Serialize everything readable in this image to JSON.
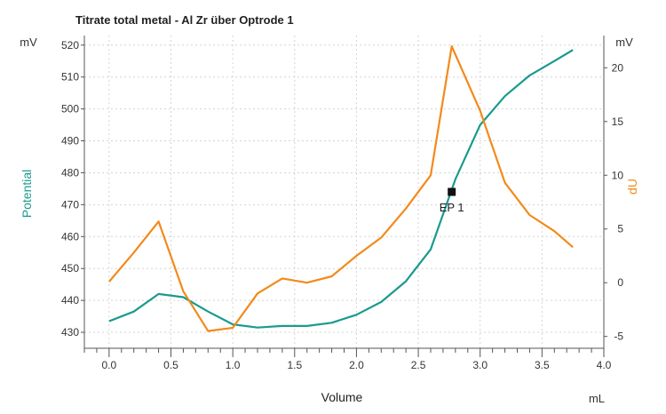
{
  "chart_data": {
    "type": "line",
    "title": "Titrate total metal - Al Zr über Optrode  1",
    "xlabel": "Volume",
    "x_unit": "mL",
    "xlim": [
      -0.2,
      4.0
    ],
    "x_ticks": [
      "0.0",
      "0.5",
      "1.0",
      "1.5",
      "2.0",
      "2.5",
      "3.0",
      "3.5",
      "4.0"
    ],
    "y_left": {
      "label": "Potential",
      "unit": "mV",
      "lim": [
        425,
        523
      ],
      "ticks": [
        "430",
        "440",
        "450",
        "460",
        "470",
        "480",
        "490",
        "500",
        "510",
        "520"
      ],
      "color": "#1a9a8e"
    },
    "y_right": {
      "label": "dU",
      "unit": "mV",
      "lim": [
        -6.1,
        23
      ],
      "ticks": [
        "-5",
        "0",
        "5",
        "10",
        "15",
        "20"
      ],
      "color": "#f28a1a"
    },
    "grid": true,
    "series": [
      {
        "axis": "left",
        "color": "#1a9a8e",
        "x": [
          0.0,
          0.2,
          0.4,
          0.6,
          0.8,
          1.0,
          1.2,
          1.4,
          1.6,
          1.8,
          2.0,
          2.2,
          2.4,
          2.6,
          2.8,
          3.0,
          3.2,
          3.4,
          3.6,
          3.75
        ],
        "y": [
          433.5,
          436.5,
          442,
          441,
          436.5,
          432.5,
          431.5,
          432,
          432,
          433,
          435.5,
          439.5,
          446,
          456,
          478,
          495,
          504,
          510.5,
          515,
          518.5
        ]
      },
      {
        "axis": "right",
        "color": "#f28a1a",
        "x": [
          0.0,
          0.2,
          0.4,
          0.6,
          0.8,
          1.0,
          1.2,
          1.4,
          1.6,
          1.8,
          2.0,
          2.2,
          2.4,
          2.6,
          2.77,
          3.0,
          3.2,
          3.4,
          3.6,
          3.75
        ],
        "y": [
          0.1,
          2.8,
          5.7,
          -0.8,
          -4.5,
          -4.2,
          -1.0,
          0.4,
          0.0,
          0.6,
          2.5,
          4.2,
          6.9,
          10.0,
          22.0,
          16.0,
          9.3,
          6.3,
          4.8,
          3.3
        ]
      }
    ],
    "annotations": [
      {
        "label": "EP 1",
        "x": 2.77,
        "y": 474,
        "axis": "left",
        "marker": "square",
        "color": "#111111"
      }
    ]
  }
}
